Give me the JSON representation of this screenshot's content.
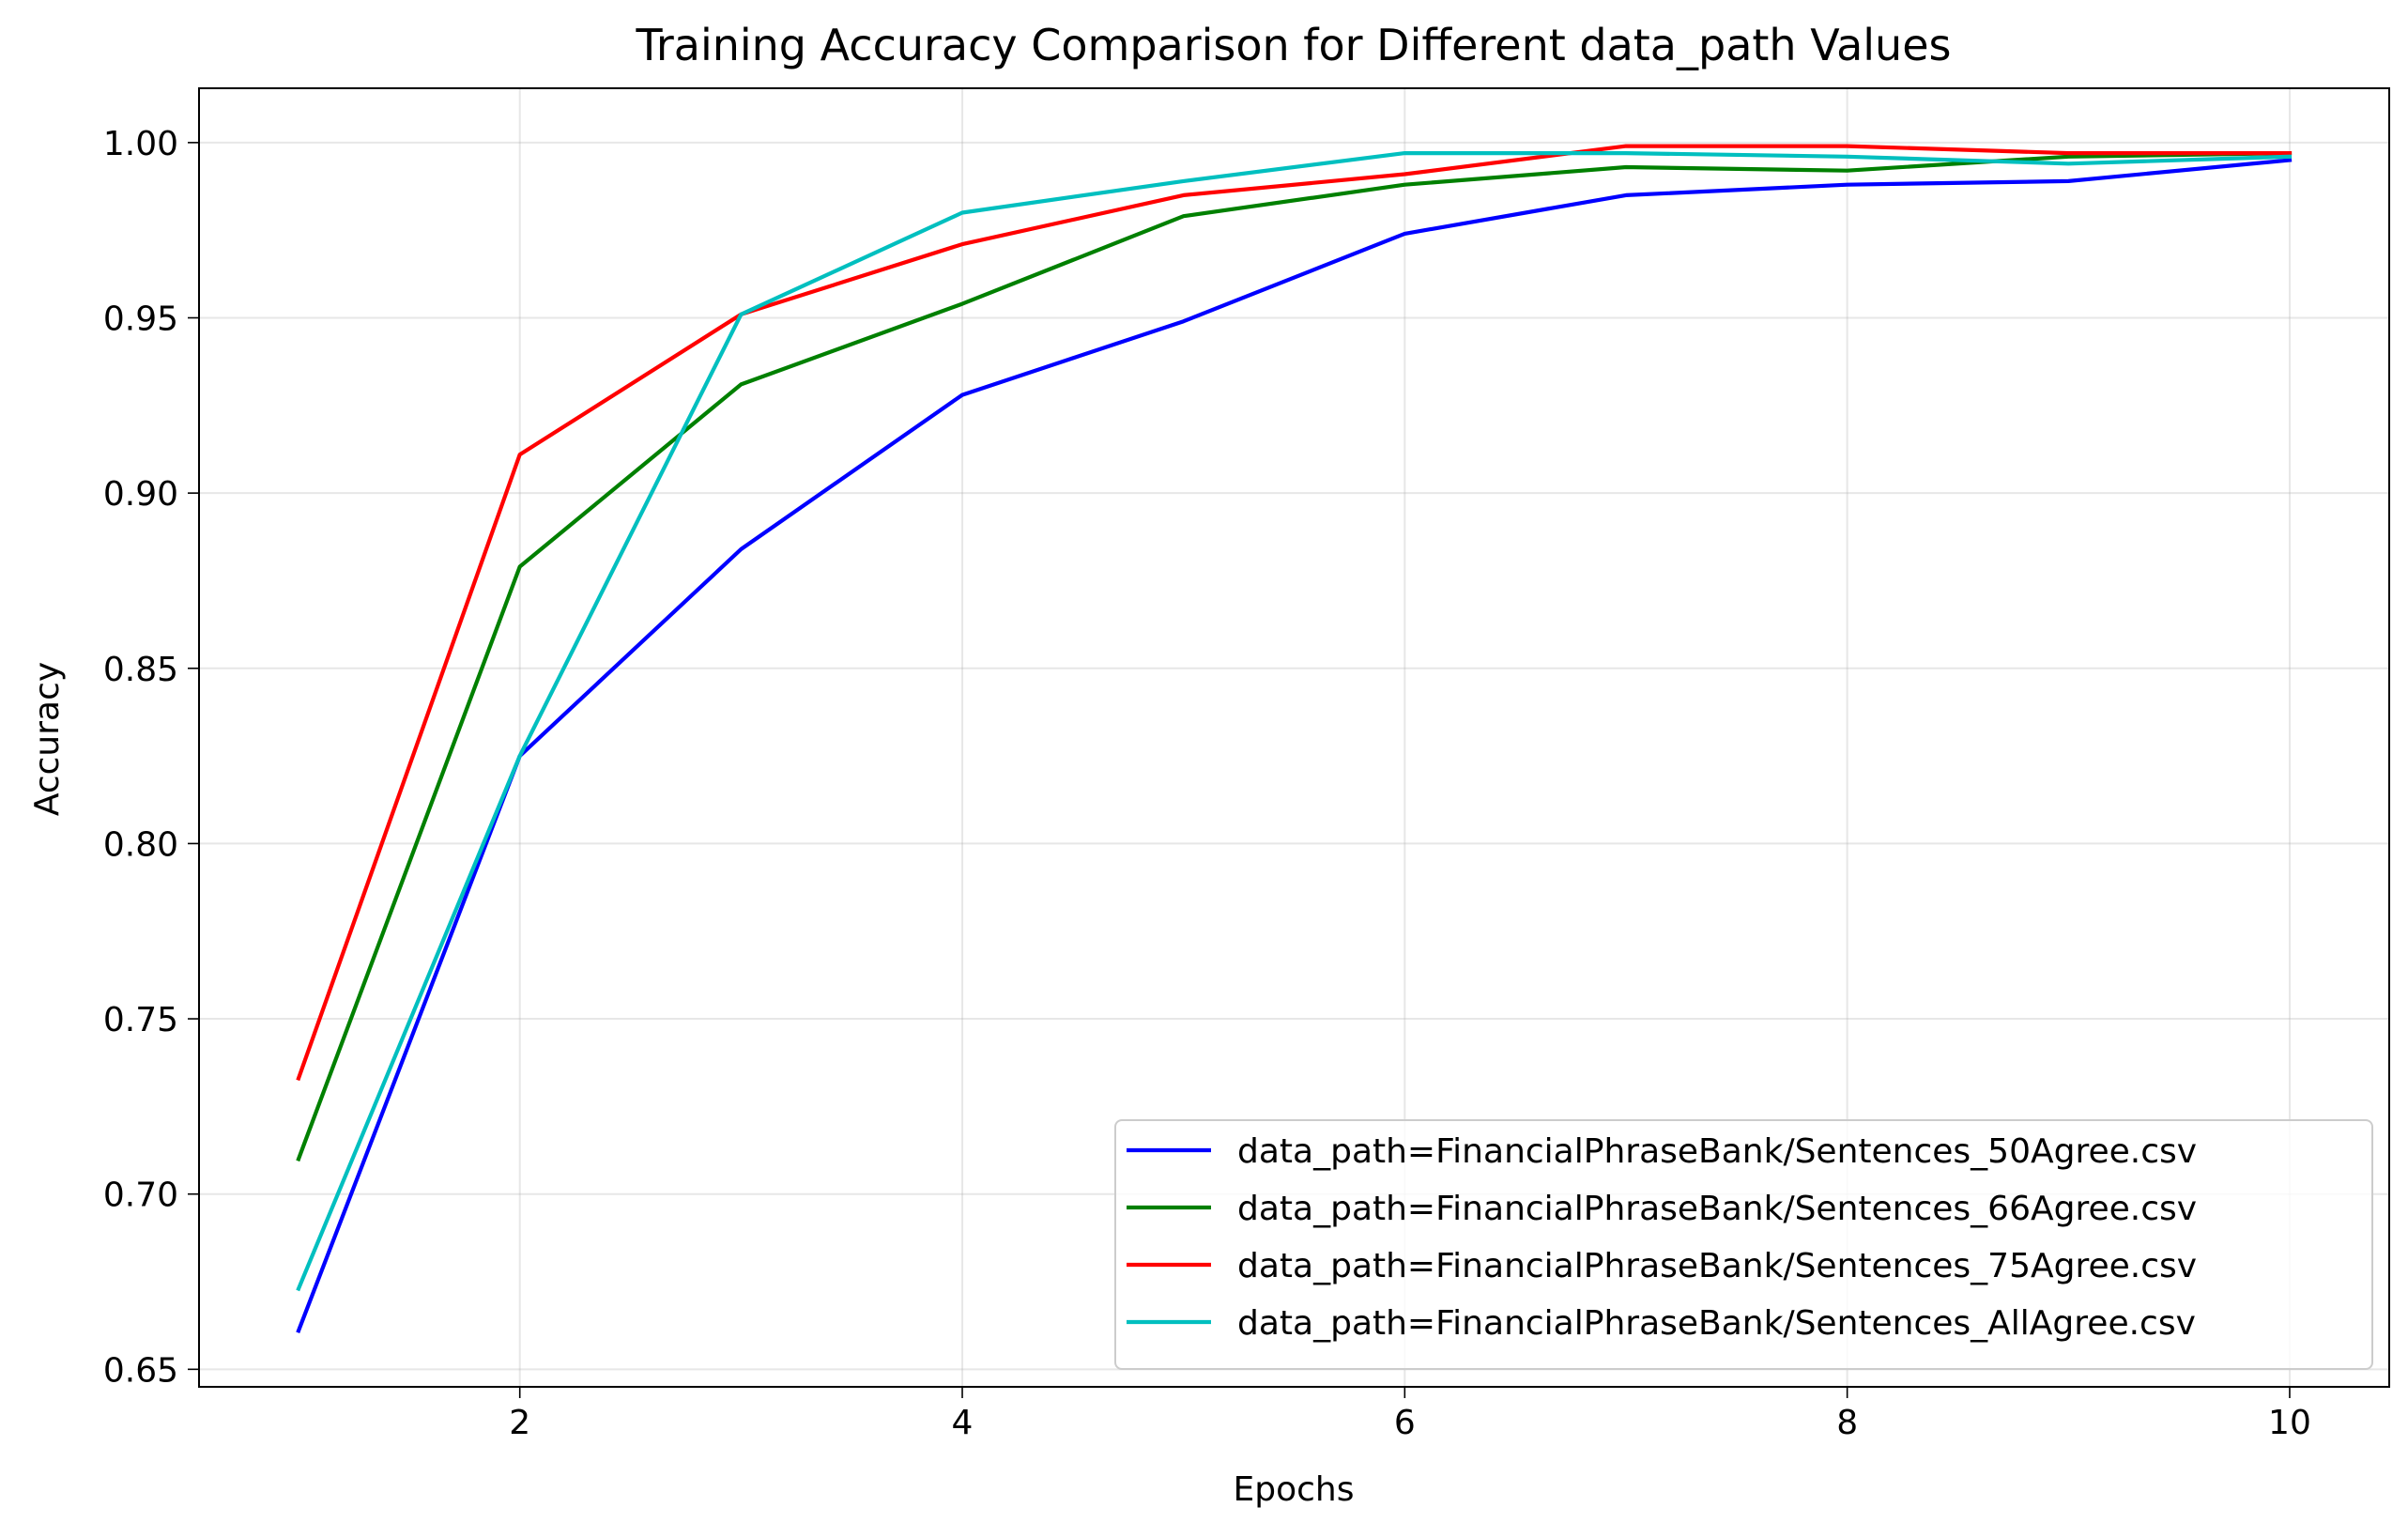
{
  "chart_data": {
    "type": "line",
    "title": "Training Accuracy Comparison for Different data_path Values",
    "xlabel": "Epochs",
    "ylabel": "Accuracy",
    "x": [
      1,
      2,
      3,
      4,
      5,
      6,
      7,
      8,
      9,
      10
    ],
    "xlim": [
      0.55,
      10.45
    ],
    "ylim": [
      0.645,
      1.0155
    ],
    "xticks": [
      2,
      4,
      6,
      8,
      10
    ],
    "xtick_labels": [
      "2",
      "4",
      "6",
      "8",
      "10"
    ],
    "yticks": [
      0.65,
      0.7,
      0.75,
      0.8,
      0.85,
      0.9,
      0.95,
      1.0
    ],
    "ytick_labels": [
      "0.65",
      "0.70",
      "0.75",
      "0.80",
      "0.85",
      "0.90",
      "0.95",
      "1.00"
    ],
    "grid": true,
    "legend_position": "lower right",
    "series": [
      {
        "name": "data_path=FinancialPhraseBank/Sentences_50Agree.csv",
        "color": "#0000ff",
        "values": [
          0.661,
          0.825,
          0.884,
          0.928,
          0.949,
          0.974,
          0.985,
          0.988,
          0.989,
          0.995
        ]
      },
      {
        "name": "data_path=FinancialPhraseBank/Sentences_66Agree.csv",
        "color": "#008000",
        "values": [
          0.71,
          0.879,
          0.931,
          0.954,
          0.979,
          0.988,
          0.993,
          0.992,
          0.996,
          0.997
        ]
      },
      {
        "name": "data_path=FinancialPhraseBank/Sentences_75Agree.csv",
        "color": "#ff0000",
        "values": [
          0.733,
          0.911,
          0.951,
          0.971,
          0.985,
          0.991,
          0.999,
          0.999,
          0.997,
          0.997
        ]
      },
      {
        "name": "data_path=FinancialPhraseBank/Sentences_AllAgree.csv",
        "color": "#00bfbf",
        "values": [
          0.673,
          0.825,
          0.951,
          0.98,
          0.989,
          0.997,
          0.997,
          0.996,
          0.994,
          0.996
        ]
      }
    ]
  }
}
